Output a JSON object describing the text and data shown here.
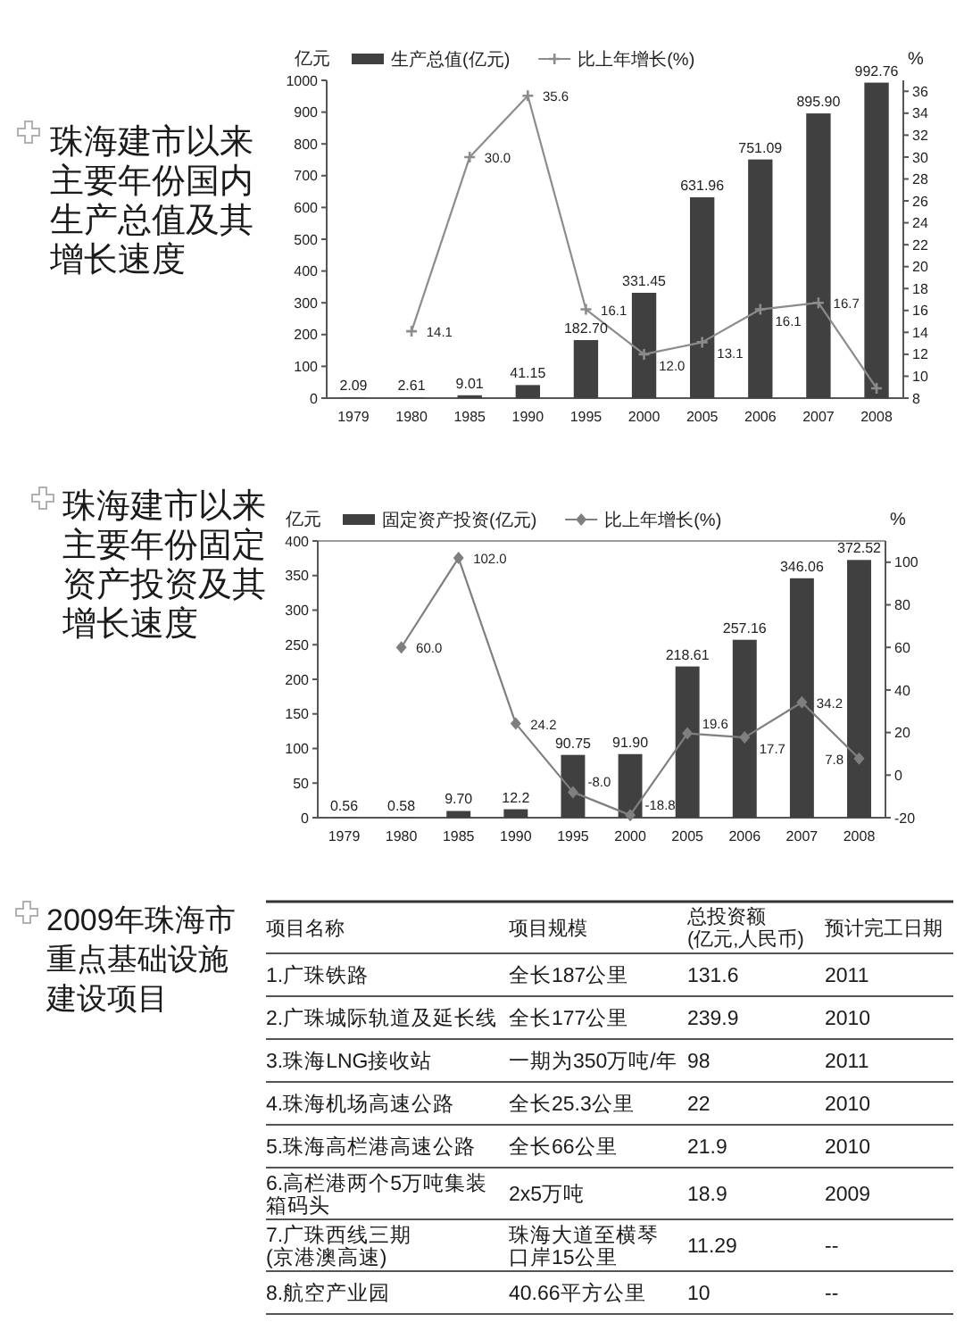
{
  "chart_data": [
    {
      "type": "bar",
      "title": "珠海建市以来主要年份国内生产总值及其增长速度",
      "categories": [
        "1979",
        "1980",
        "1985",
        "1990",
        "1995",
        "2000",
        "2005",
        "2006",
        "2007",
        "2008"
      ],
      "ylabel": "亿元",
      "y2label": "%",
      "ylim": [
        0,
        1000
      ],
      "yticks": [
        0,
        100,
        200,
        300,
        400,
        500,
        600,
        700,
        800,
        900,
        1000
      ],
      "y2lim": [
        8,
        37
      ],
      "y2ticks": [
        8,
        10,
        12,
        14,
        16,
        18,
        20,
        22,
        24,
        26,
        28,
        30,
        32,
        34,
        36
      ],
      "legend": "top left",
      "series": [
        {
          "name": "生产总值(亿元)",
          "color": "#404040",
          "values": [
            2.09,
            2.61,
            9.01,
            41.15,
            182.7,
            331.45,
            631.96,
            751.09,
            895.9,
            992.76
          ],
          "value_labels": [
            "2.09",
            "2.61",
            "9.01",
            "41.15",
            "182.70",
            "331.45",
            "631.96",
            "751.09",
            "895.90",
            "992.76"
          ]
        },
        {
          "type": "line",
          "name": "比上年增长(%)",
          "color": "#8c8c8c",
          "axis": "y2",
          "marker": "cross",
          "values": [
            null,
            14.1,
            30.0,
            35.6,
            16.1,
            12.0,
            13.1,
            16.1,
            16.7,
            8.9
          ],
          "value_labels": [
            null,
            "14.1",
            "30.0",
            "35.6",
            "16.1",
            "12.0",
            "13.1",
            "16.1",
            "16.7",
            null
          ]
        }
      ]
    },
    {
      "type": "bar",
      "title": "珠海建市以来主要年份固定资产投资及其增长速度",
      "categories": [
        "1979",
        "1980",
        "1985",
        "1990",
        "1995",
        "2000",
        "2005",
        "2006",
        "2007",
        "2008"
      ],
      "ylabel": "亿元",
      "y2label": "%",
      "ylim": [
        0,
        400
      ],
      "yticks": [
        0,
        50,
        100,
        150,
        200,
        250,
        300,
        350,
        400
      ],
      "y2lim": [
        -20,
        110
      ],
      "y2ticks": [
        -20,
        0,
        20,
        40,
        60,
        80,
        100
      ],
      "legend": "top left",
      "series": [
        {
          "name": "固定资产投资(亿元)",
          "color": "#404040",
          "values": [
            0.56,
            0.58,
            9.7,
            12.2,
            90.75,
            91.9,
            218.61,
            257.16,
            346.06,
            372.52
          ],
          "value_labels": [
            "0.56",
            "0.58",
            "9.70",
            "12.2",
            "90.75",
            "91.90",
            "218.61",
            "257.16",
            "346.06",
            "372.52"
          ]
        },
        {
          "type": "line",
          "name": "比上年增长(%)",
          "color": "#7f7f7f",
          "axis": "y2",
          "marker": "diamond",
          "values": [
            null,
            60.0,
            102.0,
            24.2,
            -8.0,
            -18.8,
            19.6,
            17.7,
            34.2,
            7.8
          ],
          "value_labels": [
            null,
            "60.0",
            "102.0",
            "24.2",
            "-8.0",
            "-18.8",
            "19.6",
            "17.7",
            "34.2",
            "7.8"
          ]
        }
      ]
    },
    {
      "type": "other",
      "title": "2009年珠海市重点基础设施建设项目",
      "categories": [
        "项目名称",
        "项目规模",
        "总投资额(亿元,人民币)",
        "预计完工日期"
      ],
      "cell_labels": [
        [
          "1.广珠铁路",
          "全长187公里",
          "131.6",
          "2011"
        ],
        [
          "2.广珠城际轨道及延长线",
          "全长177公里",
          "239.9",
          "2010"
        ],
        [
          "3.珠海LNG接收站",
          "一期为350万吨/年",
          "98",
          "2011"
        ],
        [
          "4.珠海机场高速公路",
          "全长25.3公里",
          "22",
          "2010"
        ],
        [
          "5.珠海高栏港高速公路",
          "全长66公里",
          "21.9",
          "2010"
        ],
        [
          "6.高栏港两个5万吨集装箱码头",
          "2x5万吨",
          "18.9",
          "2009"
        ],
        [
          "7.广珠西线三期(京港澳高速)",
          "珠海大道至横琴口岸15公里",
          "11.29",
          "--"
        ],
        [
          "8.航空产业园",
          "40.66平方公里",
          "10",
          "--"
        ]
      ]
    }
  ]
}
